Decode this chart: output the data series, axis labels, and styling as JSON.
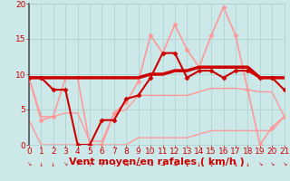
{
  "xlabel": "Vent moyen/en rafales ( km/h )",
  "xlim": [
    0,
    21
  ],
  "ylim": [
    0,
    20
  ],
  "xticks": [
    0,
    1,
    2,
    3,
    4,
    5,
    6,
    7,
    8,
    9,
    10,
    11,
    12,
    13,
    14,
    15,
    16,
    17,
    18,
    19,
    20,
    21
  ],
  "yticks": [
    0,
    5,
    10,
    15,
    20
  ],
  "background_color": "#cce8e8",
  "grid_color": "#aacfcf",
  "series": [
    {
      "comment": "dark red thick flat line - mean wind speed",
      "x": [
        0,
        1,
        2,
        3,
        4,
        5,
        6,
        7,
        8,
        9,
        10,
        11,
        12,
        13,
        14,
        15,
        16,
        17,
        18,
        19,
        20,
        21
      ],
      "y": [
        9.5,
        9.5,
        9.5,
        9.5,
        9.5,
        9.5,
        9.5,
        9.5,
        9.5,
        9.5,
        10.0,
        10.0,
        10.5,
        10.5,
        11.0,
        11.0,
        11.0,
        11.0,
        11.0,
        9.5,
        9.5,
        9.5
      ],
      "color": "#cc0000",
      "linewidth": 2.5,
      "marker": null,
      "markersize": 0,
      "zorder": 5
    },
    {
      "comment": "dark red with diamond markers - hourly wind speed",
      "x": [
        0,
        1,
        2,
        3,
        4,
        5,
        6,
        7,
        8,
        9,
        10,
        11,
        12,
        13,
        14,
        15,
        16,
        17,
        18,
        19,
        20,
        21
      ],
      "y": [
        9.5,
        9.5,
        7.8,
        7.8,
        0.0,
        0.0,
        3.5,
        3.5,
        6.5,
        7.0,
        9.5,
        13.0,
        13.0,
        9.5,
        10.5,
        10.5,
        9.5,
        10.5,
        10.5,
        9.5,
        9.5,
        7.8
      ],
      "color": "#cc0000",
      "linewidth": 1.5,
      "marker": "D",
      "markersize": 2.5,
      "zorder": 6
    },
    {
      "comment": "light pink with diamond markers - gust speed",
      "x": [
        0,
        1,
        2,
        3,
        4,
        5,
        6,
        7,
        8,
        9,
        10,
        11,
        12,
        13,
        14,
        15,
        16,
        17,
        18,
        19,
        20,
        21
      ],
      "y": [
        9.5,
        3.5,
        4.0,
        9.5,
        9.5,
        0.0,
        0.0,
        4.5,
        6.0,
        9.0,
        15.5,
        13.0,
        17.0,
        13.5,
        11.0,
        15.5,
        19.5,
        15.5,
        7.8,
        0.0,
        2.5,
        4.0
      ],
      "color": "#ff9999",
      "linewidth": 1.2,
      "marker": "D",
      "markersize": 2.5,
      "zorder": 3
    },
    {
      "comment": "light pink thin line - lower bound (min)",
      "x": [
        0,
        1,
        2,
        3,
        4,
        5,
        6,
        7,
        8,
        9,
        10,
        11,
        12,
        13,
        14,
        15,
        16,
        17,
        18,
        19,
        20,
        21
      ],
      "y": [
        3.5,
        0.0,
        0.0,
        0.0,
        0.0,
        0.0,
        0.0,
        0.0,
        0.0,
        1.0,
        1.0,
        1.0,
        1.0,
        1.0,
        1.5,
        2.0,
        2.0,
        2.0,
        2.0,
        2.0,
        2.0,
        4.0
      ],
      "color": "#ff9999",
      "linewidth": 1.0,
      "marker": null,
      "markersize": 0,
      "zorder": 2
    },
    {
      "comment": "light pink thin line - upper flat line",
      "x": [
        0,
        1,
        2,
        3,
        4,
        5,
        6,
        7,
        8,
        9,
        10,
        11,
        12,
        13,
        14,
        15,
        16,
        17,
        18,
        19,
        20,
        21
      ],
      "y": [
        9.5,
        4.0,
        4.0,
        4.5,
        4.5,
        0.5,
        0.5,
        4.5,
        5.0,
        7.0,
        7.0,
        7.0,
        7.0,
        7.0,
        7.5,
        8.0,
        8.0,
        8.0,
        7.8,
        7.5,
        7.5,
        4.0
      ],
      "color": "#ff9999",
      "linewidth": 1.0,
      "marker": null,
      "markersize": 0,
      "zorder": 2
    }
  ],
  "wind_symbols": [
    "↘",
    "↓",
    "↓",
    "↘",
    "↗",
    "↑",
    "↑",
    "↑",
    "→",
    "→",
    "→",
    "→",
    "→",
    "↓",
    "↓",
    "↓",
    "↓",
    "↓",
    "↓",
    "↘",
    "↘",
    "↘"
  ],
  "tick_label_fontsize": 6.5,
  "axis_label_fontsize": 8,
  "axis_label_color": "#cc0000",
  "tick_label_color": "#cc0000",
  "grid_linewidth": 0.5,
  "spine_color": "#555555"
}
